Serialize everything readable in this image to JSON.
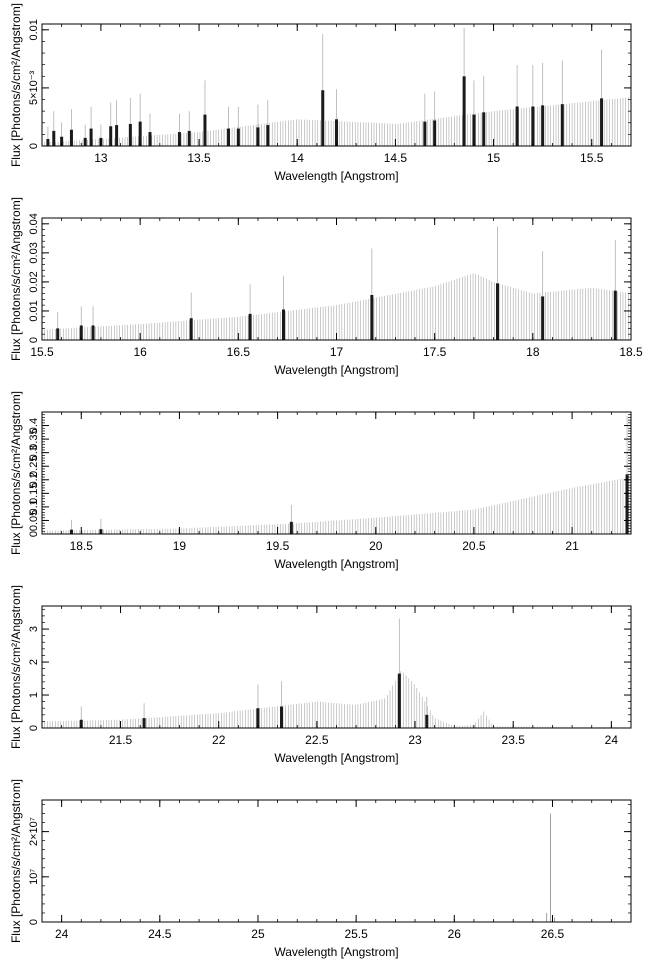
{
  "chart_data": [
    {
      "type": "bar",
      "xlabel": "Wavelength [Angstrom]",
      "ylabel": "Flux [Photons/s/cm²/Angstrom]",
      "xlim": [
        12.7,
        15.7
      ],
      "ylim": [
        0,
        0.0105
      ],
      "xticks": [
        13,
        13.5,
        14,
        14.5,
        15,
        15.5
      ],
      "xtick_labels": [
        "13",
        "13.5",
        "14",
        "14.5",
        "15",
        "15.5"
      ],
      "yticks": [
        0,
        0.005,
        0.01
      ],
      "ytick_labels": [
        "0",
        "5×10⁻³",
        "0.01"
      ],
      "continuum": [
        [
          12.7,
          0.0003
        ],
        [
          13.0,
          0.0006
        ],
        [
          13.5,
          0.0012
        ],
        [
          14.0,
          0.0023
        ],
        [
          14.5,
          0.0019
        ],
        [
          15.0,
          0.003
        ],
        [
          15.7,
          0.0042
        ]
      ],
      "lines": [
        [
          12.73,
          0.0006
        ],
        [
          12.76,
          0.0013
        ],
        [
          12.8,
          0.0008
        ],
        [
          12.85,
          0.0014
        ],
        [
          12.92,
          0.0007
        ],
        [
          12.95,
          0.0015
        ],
        [
          13.0,
          0.0007
        ],
        [
          13.05,
          0.0017
        ],
        [
          13.08,
          0.0018
        ],
        [
          13.15,
          0.0019
        ],
        [
          13.2,
          0.0021
        ],
        [
          13.25,
          0.0012
        ],
        [
          13.4,
          0.0012
        ],
        [
          13.45,
          0.0013
        ],
        [
          13.53,
          0.0027
        ],
        [
          13.65,
          0.0015
        ],
        [
          13.7,
          0.0015
        ],
        [
          13.8,
          0.0016
        ],
        [
          13.85,
          0.0018
        ],
        [
          14.13,
          0.0048
        ],
        [
          14.2,
          0.0023
        ],
        [
          14.65,
          0.0021
        ],
        [
          14.7,
          0.0022
        ],
        [
          14.85,
          0.006
        ],
        [
          14.9,
          0.0027
        ],
        [
          14.95,
          0.0029
        ],
        [
          15.12,
          0.0034
        ],
        [
          15.2,
          0.0034
        ],
        [
          15.25,
          0.0035
        ],
        [
          15.35,
          0.0036
        ],
        [
          15.55,
          0.0041
        ]
      ]
    },
    {
      "type": "bar",
      "xlabel": "Wavelength [Angstrom]",
      "ylabel": "Flux [Photons/s/cm²/Angstrom]",
      "xlim": [
        15.5,
        18.5
      ],
      "ylim": [
        0,
        0.042
      ],
      "xticks": [
        15.5,
        16,
        16.5,
        17,
        17.5,
        18,
        18.5
      ],
      "xtick_labels": [
        "15.5",
        "16",
        "16.5",
        "17",
        "17.5",
        "18",
        "18.5"
      ],
      "yticks": [
        0,
        0.01,
        0.02,
        0.03,
        0.04
      ],
      "ytick_labels": [
        "0",
        "0.01",
        "0.02",
        "0.03",
        "0.04"
      ],
      "continuum": [
        [
          15.5,
          0.0035
        ],
        [
          16.0,
          0.0055
        ],
        [
          16.5,
          0.008
        ],
        [
          17.0,
          0.012
        ],
        [
          17.5,
          0.0185
        ],
        [
          17.7,
          0.023
        ],
        [
          17.8,
          0.02
        ],
        [
          18.0,
          0.016
        ],
        [
          18.3,
          0.018
        ],
        [
          18.5,
          0.016
        ]
      ],
      "lines": [
        [
          15.58,
          0.004
        ],
        [
          15.7,
          0.005
        ],
        [
          15.76,
          0.005
        ],
        [
          16.26,
          0.0075
        ],
        [
          16.56,
          0.009
        ],
        [
          16.73,
          0.0105
        ],
        [
          17.18,
          0.0155
        ],
        [
          17.82,
          0.0195
        ],
        [
          18.05,
          0.015
        ],
        [
          18.42,
          0.017
        ]
      ]
    },
    {
      "type": "bar",
      "xlabel": "Wavelength [Angstrom]",
      "ylabel": "Flux [Photons/s/cm²/Angstrom]",
      "xlim": [
        18.3,
        21.3
      ],
      "ylim": [
        0,
        0.45
      ],
      "xticks": [
        18.5,
        19,
        19.5,
        20,
        20.5,
        21
      ],
      "xtick_labels": [
        "18.5",
        "19",
        "19.5",
        "20",
        "20.5",
        "21"
      ],
      "yticks": [
        0,
        0.05,
        0.1,
        0.15,
        0.2,
        0.25,
        0.3,
        0.35,
        0.4
      ],
      "ytick_labels": [
        "0",
        "0.05",
        "0.1",
        "0.15",
        "0.2",
        "0.25",
        "0.3",
        "0.35",
        "0.4"
      ],
      "continuum": [
        [
          18.3,
          0.012
        ],
        [
          19.0,
          0.02
        ],
        [
          19.6,
          0.04
        ],
        [
          20.0,
          0.06
        ],
        [
          20.5,
          0.09
        ],
        [
          21.0,
          0.17
        ],
        [
          21.3,
          0.21
        ]
      ],
      "lines": [
        [
          18.45,
          0.016
        ],
        [
          18.6,
          0.018
        ],
        [
          19.57,
          0.045
        ],
        [
          21.28,
          0.22
        ]
      ]
    },
    {
      "type": "bar",
      "xlabel": "Wavelength [Angstrom]",
      "ylabel": "Flux [Photons/s/cm²/Angstrom]",
      "xlim": [
        21.1,
        24.1
      ],
      "ylim": [
        0,
        3.7
      ],
      "xticks": [
        21.5,
        22,
        22.5,
        23,
        23.5,
        24
      ],
      "xtick_labels": [
        "21.5",
        "22",
        "22.5",
        "23",
        "23.5",
        "24"
      ],
      "yticks": [
        0,
        1,
        2,
        3
      ],
      "ytick_labels": [
        "0",
        "1",
        "2",
        "3"
      ],
      "continuum": [
        [
          21.1,
          0.2
        ],
        [
          21.5,
          0.25
        ],
        [
          22.0,
          0.45
        ],
        [
          22.5,
          0.8
        ],
        [
          22.7,
          0.7
        ],
        [
          22.85,
          0.9
        ],
        [
          22.93,
          1.75
        ],
        [
          23.0,
          1.3
        ],
        [
          23.1,
          0.3
        ],
        [
          23.2,
          0.05
        ],
        [
          23.3,
          0.1
        ],
        [
          23.35,
          0.5
        ],
        [
          23.4,
          0.05
        ],
        [
          24.1,
          0.02
        ]
      ],
      "lines": [
        [
          21.3,
          0.25
        ],
        [
          21.62,
          0.3
        ],
        [
          22.2,
          0.6
        ],
        [
          22.32,
          0.65
        ],
        [
          22.92,
          1.65
        ],
        [
          23.06,
          0.4
        ]
      ]
    },
    {
      "type": "bar",
      "xlabel": "Wavelength [Angstrom]",
      "ylabel": "Flux [Photons/s/cm²/Angstrom]",
      "xlim": [
        23.9,
        26.9
      ],
      "ylim": [
        0,
        27000000
      ],
      "xticks": [
        24,
        24.5,
        25,
        25.5,
        26,
        26.5
      ],
      "xtick_labels": [
        "24",
        "24.5",
        "25",
        "25.5",
        "26",
        "26.5"
      ],
      "yticks": [
        0,
        10000000,
        20000000
      ],
      "ytick_labels": [
        "0",
        "10⁷",
        "2×10⁷"
      ],
      "continuum": [],
      "lines": [
        [
          26.47,
          2000000
        ],
        [
          26.49,
          24000000
        ],
        [
          26.51,
          1000000
        ]
      ]
    }
  ]
}
